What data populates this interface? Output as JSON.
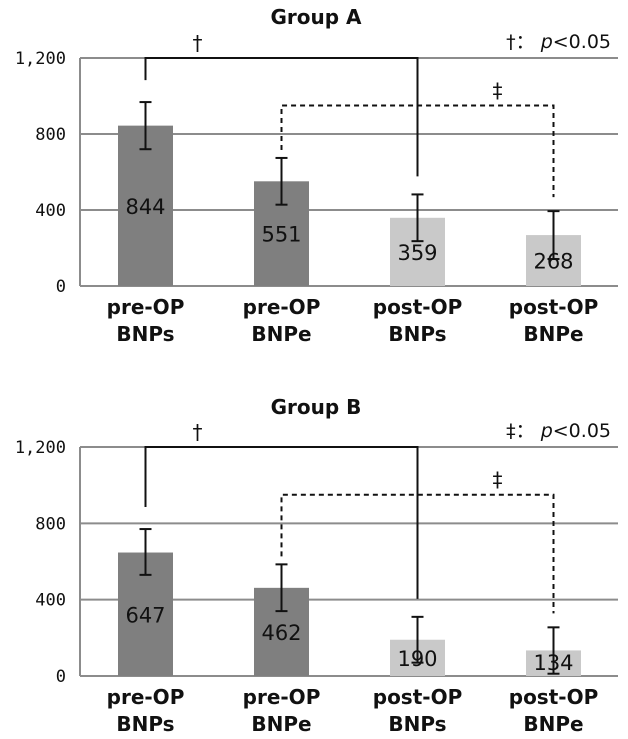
{
  "chart_data": [
    {
      "type": "bar",
      "title": "Group A",
      "note": {
        "symbol": "†",
        "sep": "：",
        "p": "p",
        "op": "<0.05"
      },
      "categories": [
        [
          "pre-OP",
          "BNPs"
        ],
        [
          "pre-OP",
          "BNPe"
        ],
        [
          "post-OP",
          "BNPs"
        ],
        [
          "post-OP",
          "BNPe"
        ]
      ],
      "values": [
        844,
        551,
        359,
        268
      ],
      "error": [
        [
          720,
          968
        ],
        [
          428,
          674
        ],
        [
          236,
          482
        ],
        [
          142,
          394
        ]
      ],
      "value_labels": [
        "844",
        "551",
        "359",
        "268"
      ],
      "yticks": [
        "0",
        "400",
        "800",
        "1,200"
      ],
      "ylim": [
        0,
        1200
      ],
      "grid": true,
      "brackets": [
        {
          "from": 0,
          "to": 2,
          "level": 1200,
          "style": "solid",
          "mark": "†"
        },
        {
          "from": 1,
          "to": 3,
          "level": 950,
          "style": "dashed",
          "mark": "‡"
        }
      ]
    },
    {
      "type": "bar",
      "title": "Group B",
      "note": {
        "symbol": "‡",
        "sep": "：",
        "p": "p",
        "op": "<0.05"
      },
      "categories": [
        [
          "pre-OP",
          "BNPs"
        ],
        [
          "pre-OP",
          "BNPe"
        ],
        [
          "post-OP",
          "BNPs"
        ],
        [
          "post-OP",
          "BNPe"
        ]
      ],
      "values": [
        647,
        462,
        190,
        134
      ],
      "error": [
        [
          530,
          770
        ],
        [
          340,
          585
        ],
        [
          70,
          310
        ],
        [
          12,
          255
        ]
      ],
      "value_labels": [
        "647",
        "462",
        "190",
        "134"
      ],
      "yticks": [
        "0",
        "400",
        "800",
        "1,200"
      ],
      "ylim": [
        0,
        1200
      ],
      "grid": true,
      "brackets": [
        {
          "from": 0,
          "to": 2,
          "level": 1200,
          "style": "solid",
          "mark": "†"
        },
        {
          "from": 1,
          "to": 3,
          "level": 950,
          "style": "dashed",
          "mark": "‡"
        }
      ]
    }
  ],
  "colors": {
    "pre": "#7f7f7f",
    "post": "#c9c9c9",
    "grid": "#8c8c8c",
    "axis": "#333333",
    "ink": "#111111"
  }
}
